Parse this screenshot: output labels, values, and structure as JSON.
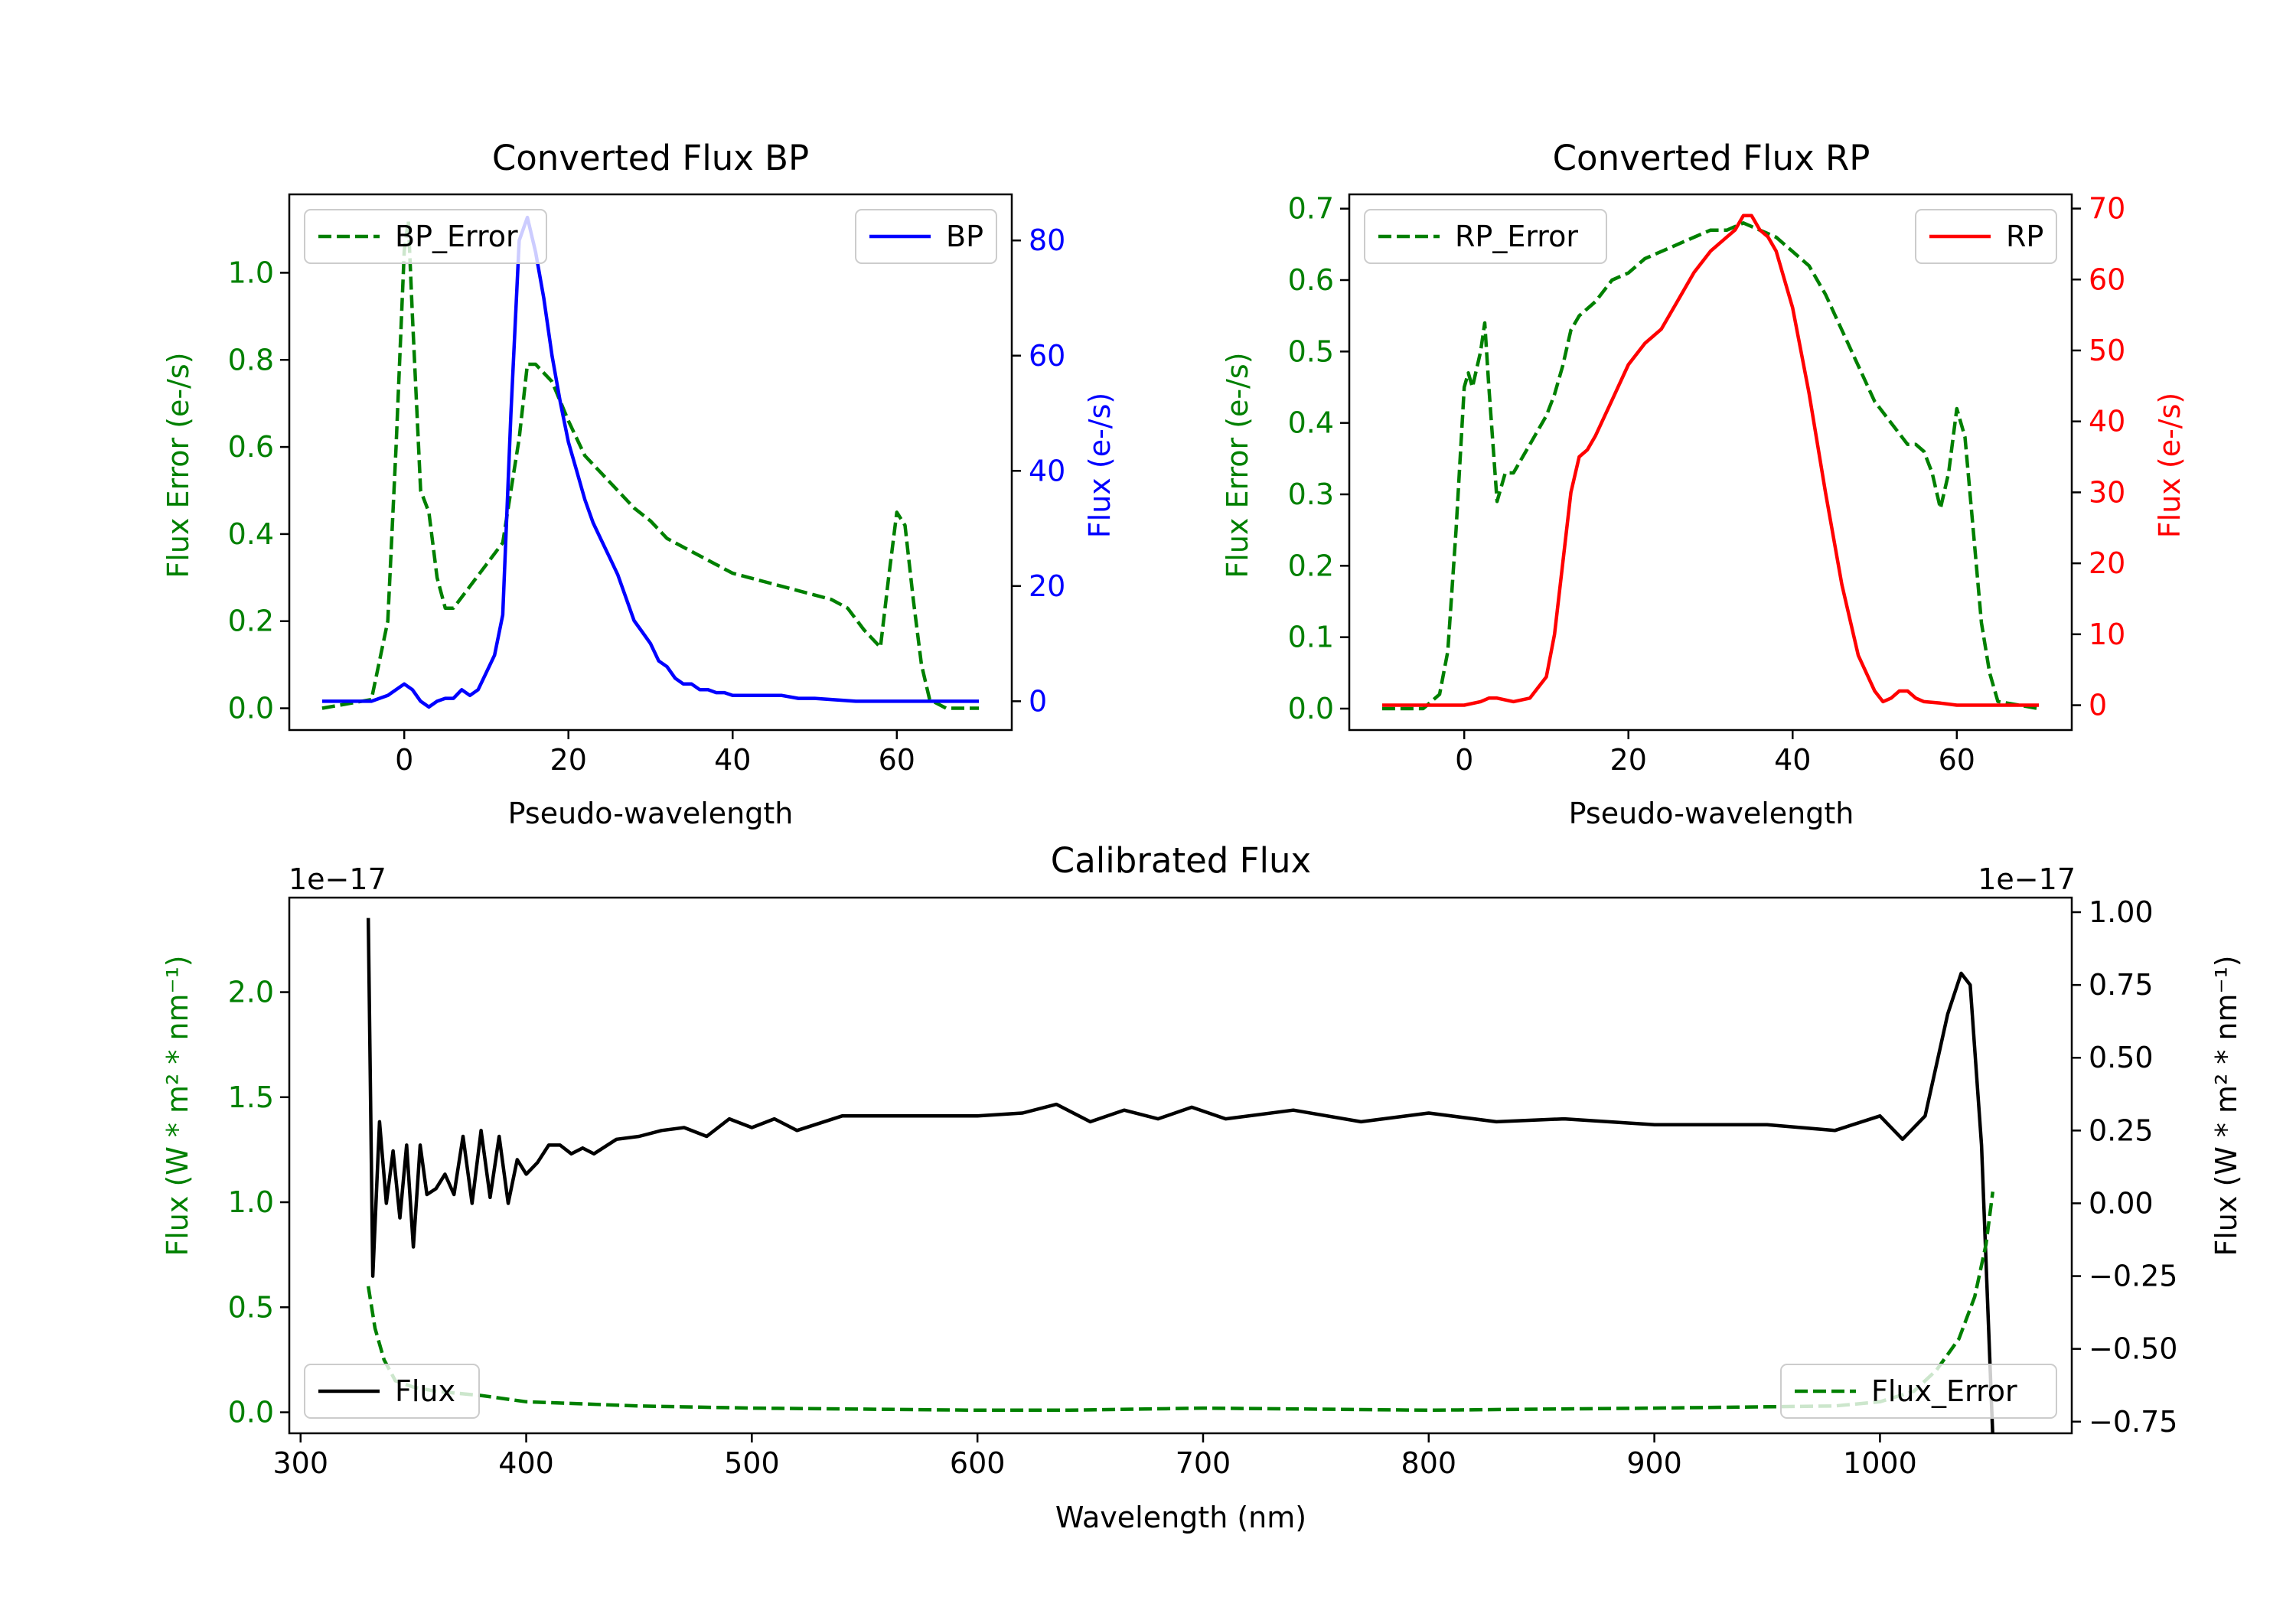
{
  "colors": {
    "error": "#008000",
    "bp": "#0000ff",
    "rp": "#ff0000",
    "flux": "#000000",
    "axis": "#000000"
  },
  "chart_data": [
    {
      "type": "line",
      "title": "Converted Flux BP",
      "xlabel": "Pseudo-wavelength",
      "ylabel_left": "Flux Error (e-/s)",
      "ylabel_right": "Flux (e-/s)",
      "xlim": [
        -14,
        74
      ],
      "ylim_left": [
        -0.05,
        1.18
      ],
      "ylim_right": [
        -5,
        88
      ],
      "xticks": [
        {
          "v": 0,
          "label": "0"
        },
        {
          "v": 20,
          "label": "20"
        },
        {
          "v": 40,
          "label": "40"
        },
        {
          "v": 60,
          "label": "60"
        }
      ],
      "yticks_left": [
        {
          "v": 0.0,
          "label": "0.0"
        },
        {
          "v": 0.2,
          "label": "0.2"
        },
        {
          "v": 0.4,
          "label": "0.4"
        },
        {
          "v": 0.6,
          "label": "0.6"
        },
        {
          "v": 0.8,
          "label": "0.8"
        },
        {
          "v": 1.0,
          "label": "1.0"
        }
      ],
      "yticks_right": [
        {
          "v": 0,
          "label": "0"
        },
        {
          "v": 20,
          "label": "20"
        },
        {
          "v": 40,
          "label": "40"
        },
        {
          "v": 60,
          "label": "60"
        },
        {
          "v": 80,
          "label": "80"
        }
      ],
      "series": [
        {
          "name": "BP_Error",
          "axis": "left",
          "color": "#008000",
          "dash": true,
          "legend": "top-left",
          "x": [
            -10,
            -4,
            -2,
            -1,
            0,
            0.5,
            1,
            2,
            3,
            4,
            5,
            6,
            8,
            10,
            12,
            13,
            14,
            15,
            16,
            18,
            20,
            22,
            24,
            26,
            28,
            30,
            32,
            34,
            36,
            38,
            40,
            42,
            44,
            46,
            48,
            50,
            52,
            54,
            56,
            57,
            58,
            59,
            60,
            61,
            62,
            63,
            64,
            66,
            70
          ],
          "y": [
            0.0,
            0.02,
            0.2,
            0.6,
            1.05,
            1.12,
            0.9,
            0.5,
            0.45,
            0.3,
            0.23,
            0.23,
            0.28,
            0.33,
            0.38,
            0.5,
            0.62,
            0.79,
            0.79,
            0.75,
            0.66,
            0.58,
            0.54,
            0.5,
            0.46,
            0.43,
            0.39,
            0.37,
            0.35,
            0.33,
            0.31,
            0.3,
            0.29,
            0.28,
            0.27,
            0.26,
            0.25,
            0.23,
            0.18,
            0.16,
            0.14,
            0.3,
            0.45,
            0.42,
            0.25,
            0.1,
            0.02,
            0.0,
            0.0
          ]
        },
        {
          "name": "BP",
          "axis": "right",
          "color": "#0000ff",
          "dash": false,
          "legend": "top-right",
          "x": [
            -10,
            -4,
            -2,
            0,
            1,
            2,
            3,
            4,
            5,
            6,
            7,
            8,
            9,
            10,
            11,
            12,
            13,
            14,
            15,
            16,
            17,
            18,
            19,
            20,
            21,
            22,
            23,
            24,
            25,
            26,
            27,
            28,
            29,
            30,
            31,
            32,
            33,
            34,
            35,
            36,
            37,
            38,
            39,
            40,
            42,
            44,
            46,
            48,
            50,
            55,
            60,
            65,
            70
          ],
          "y": [
            0,
            0,
            1,
            3,
            2,
            0,
            -1,
            0,
            0.5,
            0.5,
            2,
            1,
            2,
            5,
            8,
            15,
            50,
            80,
            84,
            78,
            70,
            60,
            52,
            45,
            40,
            35,
            31,
            28,
            25,
            22,
            18,
            14,
            12,
            10,
            7,
            6,
            4,
            3,
            3,
            2,
            2,
            1.5,
            1.5,
            1,
            1,
            1,
            1,
            0.5,
            0.5,
            0,
            0,
            0,
            0
          ]
        }
      ]
    },
    {
      "type": "line",
      "title": "Converted Flux RP",
      "xlabel": "Pseudo-wavelength",
      "ylabel_left": "Flux Error (e-/s)",
      "ylabel_right": "Flux (e-/s)",
      "xlim": [
        -14,
        74
      ],
      "ylim_left": [
        -0.03,
        0.72
      ],
      "ylim_right": [
        -3.5,
        72
      ],
      "xticks": [
        {
          "v": 0,
          "label": "0"
        },
        {
          "v": 20,
          "label": "20"
        },
        {
          "v": 40,
          "label": "40"
        },
        {
          "v": 60,
          "label": "60"
        }
      ],
      "yticks_left": [
        {
          "v": 0.0,
          "label": "0.0"
        },
        {
          "v": 0.1,
          "label": "0.1"
        },
        {
          "v": 0.2,
          "label": "0.2"
        },
        {
          "v": 0.3,
          "label": "0.3"
        },
        {
          "v": 0.4,
          "label": "0.4"
        },
        {
          "v": 0.5,
          "label": "0.5"
        },
        {
          "v": 0.6,
          "label": "0.6"
        },
        {
          "v": 0.7,
          "label": "0.7"
        }
      ],
      "yticks_right": [
        {
          "v": 0,
          "label": "0"
        },
        {
          "v": 10,
          "label": "10"
        },
        {
          "v": 20,
          "label": "20"
        },
        {
          "v": 30,
          "label": "30"
        },
        {
          "v": 40,
          "label": "40"
        },
        {
          "v": 50,
          "label": "50"
        },
        {
          "v": 60,
          "label": "60"
        },
        {
          "v": 70,
          "label": "70"
        }
      ],
      "series": [
        {
          "name": "RP_Error",
          "axis": "left",
          "color": "#008000",
          "dash": true,
          "legend": "top-left",
          "x": [
            -10,
            -5,
            -3,
            -2,
            -1,
            0,
            0.5,
            1,
            2,
            2.5,
            3,
            4,
            5,
            6,
            7,
            8,
            9,
            10,
            11,
            12,
            13,
            14,
            16,
            18,
            20,
            22,
            24,
            26,
            28,
            30,
            32,
            34,
            36,
            38,
            40,
            42,
            44,
            46,
            48,
            50,
            52,
            54,
            55,
            56,
            57,
            58,
            59,
            60,
            61,
            62,
            63,
            64,
            65,
            70
          ],
          "y": [
            0,
            0,
            0.02,
            0.08,
            0.25,
            0.45,
            0.47,
            0.45,
            0.5,
            0.54,
            0.45,
            0.29,
            0.33,
            0.33,
            0.35,
            0.37,
            0.39,
            0.41,
            0.44,
            0.48,
            0.53,
            0.55,
            0.57,
            0.6,
            0.61,
            0.63,
            0.64,
            0.65,
            0.66,
            0.67,
            0.67,
            0.68,
            0.67,
            0.66,
            0.64,
            0.62,
            0.58,
            0.53,
            0.48,
            0.43,
            0.4,
            0.37,
            0.37,
            0.36,
            0.33,
            0.28,
            0.33,
            0.42,
            0.38,
            0.25,
            0.12,
            0.05,
            0.01,
            0
          ]
        },
        {
          "name": "RP",
          "axis": "right",
          "color": "#ff0000",
          "dash": false,
          "legend": "top-right",
          "x": [
            -10,
            0,
            2,
            3,
            4,
            6,
            8,
            10,
            11,
            12,
            13,
            14,
            15,
            16,
            18,
            20,
            22,
            24,
            26,
            28,
            30,
            32,
            33,
            34,
            35,
            36,
            37,
            38,
            40,
            42,
            44,
            46,
            48,
            50,
            51,
            52,
            53,
            54,
            55,
            56,
            58,
            60,
            70
          ],
          "y": [
            0,
            0,
            0.5,
            1,
            1,
            0.5,
            1,
            4,
            10,
            20,
            30,
            35,
            36,
            38,
            43,
            48,
            51,
            53,
            57,
            61,
            64,
            66,
            67,
            69,
            69,
            67,
            66,
            64,
            56,
            44,
            30,
            17,
            7,
            2,
            0.5,
            1,
            2,
            2,
            1,
            0.5,
            0.3,
            0,
            0
          ]
        }
      ]
    },
    {
      "type": "line",
      "title": "Calibrated Flux",
      "xlabel": "Wavelength (nm)",
      "ylabel_left": "Flux (W * m² * nm⁻¹)",
      "ylabel_right": "Flux (W * m² * nm⁻¹)",
      "offset_left": "1e−17",
      "offset_right": "1e−17",
      "xlim": [
        295,
        1085
      ],
      "ylim_left": [
        -0.1,
        2.45
      ],
      "ylim_right": [
        -0.79,
        1.05
      ],
      "xticks": [
        {
          "v": 300,
          "label": "300"
        },
        {
          "v": 400,
          "label": "400"
        },
        {
          "v": 500,
          "label": "500"
        },
        {
          "v": 600,
          "label": "600"
        },
        {
          "v": 700,
          "label": "700"
        },
        {
          "v": 800,
          "label": "800"
        },
        {
          "v": 900,
          "label": "900"
        },
        {
          "v": 1000,
          "label": "1000"
        }
      ],
      "yticks_left": [
        {
          "v": 0.0,
          "label": "0.0"
        },
        {
          "v": 0.5,
          "label": "0.5"
        },
        {
          "v": 1.0,
          "label": "1.0"
        },
        {
          "v": 1.5,
          "label": "1.5"
        },
        {
          "v": 2.0,
          "label": "2.0"
        }
      ],
      "yticks_right": [
        {
          "v": -0.75,
          "label": "−0.75"
        },
        {
          "v": -0.5,
          "label": "−0.50"
        },
        {
          "v": -0.25,
          "label": "−0.25"
        },
        {
          "v": 0.0,
          "label": "0.00"
        },
        {
          "v": 0.25,
          "label": "0.25"
        },
        {
          "v": 0.5,
          "label": "0.50"
        },
        {
          "v": 0.75,
          "label": "0.75"
        },
        {
          "v": 1.0,
          "label": "1.00"
        }
      ],
      "series": [
        {
          "name": "Flux",
          "axis": "right",
          "color": "#000000",
          "dash": false,
          "legend": "bottom-left",
          "x": [
            330,
            332,
            335,
            338,
            341,
            344,
            347,
            350,
            353,
            356,
            360,
            364,
            368,
            372,
            376,
            380,
            384,
            388,
            392,
            396,
            400,
            405,
            410,
            415,
            420,
            425,
            430,
            440,
            450,
            460,
            470,
            480,
            490,
            500,
            510,
            520,
            540,
            560,
            580,
            600,
            620,
            635,
            650,
            665,
            680,
            695,
            710,
            740,
            770,
            800,
            830,
            860,
            900,
            950,
            980,
            1000,
            1010,
            1020,
            1030,
            1036,
            1040,
            1045,
            1050
          ],
          "y": [
            0.98,
            -0.25,
            0.28,
            0.0,
            0.18,
            -0.05,
            0.2,
            -0.15,
            0.2,
            0.03,
            0.05,
            0.1,
            0.03,
            0.23,
            0.0,
            0.25,
            0.02,
            0.23,
            0.0,
            0.15,
            0.1,
            0.14,
            0.2,
            0.2,
            0.17,
            0.19,
            0.17,
            0.22,
            0.23,
            0.25,
            0.26,
            0.23,
            0.29,
            0.26,
            0.29,
            0.25,
            0.3,
            0.3,
            0.3,
            0.3,
            0.31,
            0.34,
            0.28,
            0.32,
            0.29,
            0.33,
            0.29,
            0.32,
            0.28,
            0.31,
            0.28,
            0.29,
            0.27,
            0.27,
            0.25,
            0.3,
            0.22,
            0.3,
            0.65,
            0.79,
            0.75,
            0.2,
            -0.8
          ]
        },
        {
          "name": "Flux_Error",
          "axis": "left",
          "color": "#008000",
          "dash": true,
          "legend": "bottom-right",
          "x": [
            330,
            333,
            337,
            342,
            350,
            360,
            380,
            400,
            450,
            500,
            600,
            640,
            700,
            800,
            900,
            980,
            1000,
            1015,
            1025,
            1035,
            1042,
            1047,
            1050
          ],
          "y": [
            0.6,
            0.4,
            0.25,
            0.15,
            0.12,
            0.1,
            0.08,
            0.05,
            0.03,
            0.02,
            0.01,
            0.01,
            0.02,
            0.01,
            0.02,
            0.03,
            0.05,
            0.1,
            0.2,
            0.35,
            0.55,
            0.8,
            1.05
          ]
        }
      ]
    }
  ]
}
